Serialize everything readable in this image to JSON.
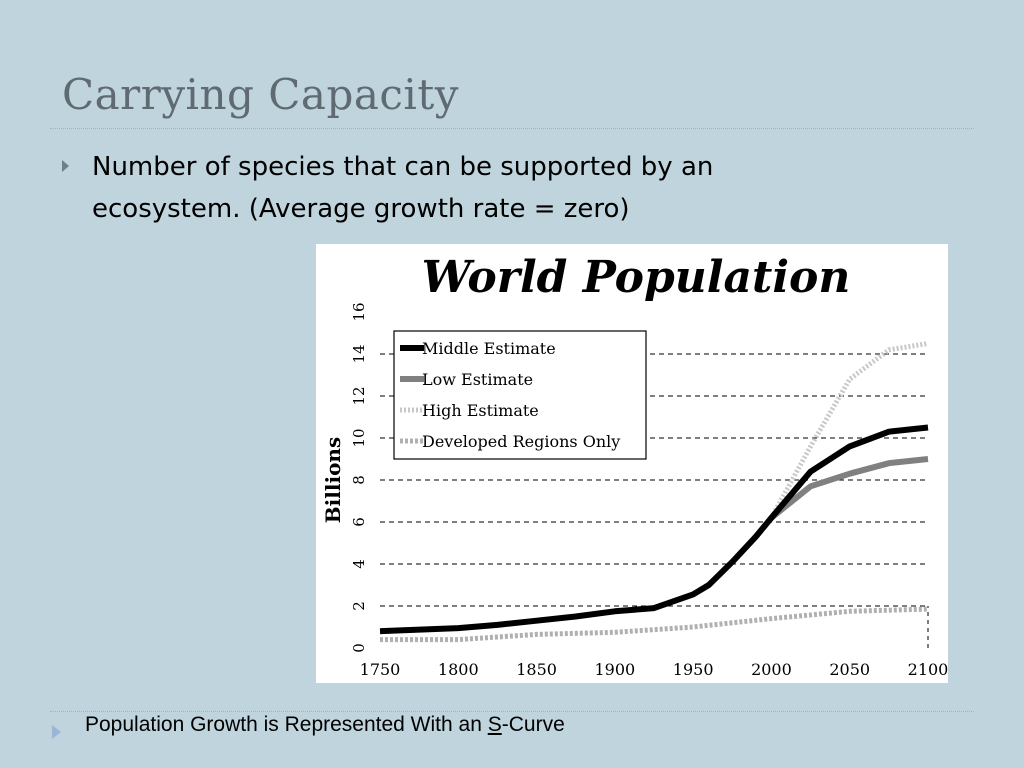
{
  "slide": {
    "title": "Carrying Capacity",
    "bullet": "Number of species that can be supported by an ecosystem. (Average growth rate = zero)",
    "footer_prefix": "Population Growth is Represented With an ",
    "footer_underlined": "S",
    "footer_suffix": "-Curve"
  },
  "chart_data": {
    "type": "line",
    "title": "World Population",
    "xlabel": "",
    "ylabel": "Billions",
    "xlim": [
      1750,
      2100
    ],
    "ylim": [
      0,
      16
    ],
    "x_ticks": [
      1750,
      1800,
      1850,
      1900,
      1950,
      2000,
      2050,
      2100
    ],
    "y_ticks": [
      0,
      2,
      4,
      6,
      8,
      10,
      12,
      14,
      16
    ],
    "grid": "horizontal dashed",
    "legend_position": "top-left",
    "colors": {
      "Middle Estimate": "#000000",
      "Low Estimate": "#808080",
      "High Estimate": "#c8c8c8",
      "Developed Regions Only": "#b0b0b0"
    },
    "series": [
      {
        "name": "Middle Estimate",
        "x": [
          1750,
          1800,
          1825,
          1850,
          1875,
          1900,
          1925,
          1950,
          1960,
          1975,
          1990,
          2000,
          2025,
          2050,
          2075,
          2100
        ],
        "y": [
          0.8,
          0.95,
          1.1,
          1.3,
          1.5,
          1.75,
          1.9,
          2.55,
          3.0,
          4.1,
          5.3,
          6.2,
          8.4,
          9.6,
          10.3,
          10.5
        ]
      },
      {
        "name": "Low Estimate",
        "x": [
          2000,
          2025,
          2050,
          2075,
          2100
        ],
        "y": [
          6.2,
          7.7,
          8.3,
          8.8,
          9.0
        ]
      },
      {
        "name": "High Estimate",
        "x": [
          2000,
          2025,
          2050,
          2075,
          2100
        ],
        "y": [
          6.2,
          9.6,
          12.8,
          14.2,
          14.5
        ]
      },
      {
        "name": "Developed Regions Only",
        "x": [
          1750,
          1800,
          1850,
          1900,
          1950,
          2000,
          2050,
          2100
        ],
        "y": [
          0.4,
          0.4,
          0.65,
          0.75,
          1.0,
          1.4,
          1.75,
          1.85
        ]
      }
    ]
  }
}
